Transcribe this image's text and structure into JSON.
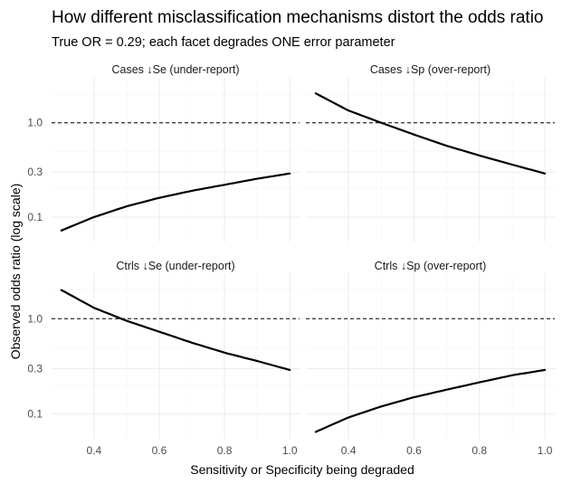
{
  "chart_data": {
    "type": "line",
    "title": "How different misclassification mechanisms distort the odds ratio",
    "subtitle": "True OR = 0.29; each facet degrades ONE error parameter",
    "xlabel": "Sensitivity or Specificity being degraded",
    "ylabel": "Observed odds ratio (log scale)",
    "y_scale": "log",
    "xlim": [
      0.27,
      1.03
    ],
    "ylim": [
      0.055,
      3.0
    ],
    "x_ticks": [
      0.4,
      0.6,
      0.8,
      1.0
    ],
    "x_tick_labels": [
      "0.4",
      "0.6",
      "0.8",
      "1.0"
    ],
    "y_ticks": [
      0.1,
      0.3,
      1.0
    ],
    "y_tick_labels": [
      "0.1",
      "0.3",
      "1.0"
    ],
    "reference_line": 1.0,
    "grid": true,
    "facets": [
      {
        "name": "Cases ↓Se  (under-report)",
        "x": [
          0.3,
          0.4,
          0.5,
          0.6,
          0.7,
          0.8,
          0.9,
          1.0
        ],
        "y": [
          0.072,
          0.1,
          0.13,
          0.16,
          0.19,
          0.22,
          0.255,
          0.29
        ]
      },
      {
        "name": "Cases ↓Sp  (over-report)",
        "x": [
          0.3,
          0.4,
          0.5,
          0.6,
          0.7,
          0.8,
          0.9,
          1.0
        ],
        "y": [
          2.05,
          1.35,
          1.0,
          0.75,
          0.57,
          0.45,
          0.36,
          0.29
        ]
      },
      {
        "name": "Ctrls ↓Se  (under-report)",
        "x": [
          0.3,
          0.4,
          0.5,
          0.6,
          0.7,
          0.8,
          0.9,
          1.0
        ],
        "y": [
          2.0,
          1.3,
          0.95,
          0.73,
          0.56,
          0.44,
          0.36,
          0.29
        ]
      },
      {
        "name": "Ctrls ↓Sp  (over-report)",
        "x": [
          0.3,
          0.4,
          0.5,
          0.6,
          0.7,
          0.8,
          0.9,
          1.0
        ],
        "y": [
          0.065,
          0.092,
          0.12,
          0.15,
          0.18,
          0.215,
          0.255,
          0.29
        ]
      }
    ]
  }
}
